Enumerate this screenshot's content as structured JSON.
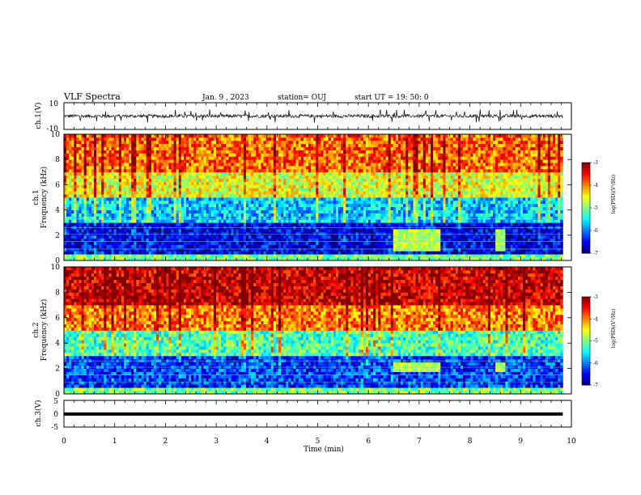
{
  "header": {
    "title": "VLF Spectra",
    "date": "Jan. 9 , 2023",
    "station": "station= OUJ",
    "start": "start UT = 19: 50: 0"
  },
  "chart_data": [
    {
      "type": "line",
      "title": "",
      "ylabel": "ch.1(V)",
      "ylim": [
        -10,
        10
      ],
      "yticks": [
        "10",
        "-10"
      ],
      "xlim": [
        0,
        9.83
      ],
      "series": [
        {
          "values_description_level": 0,
          "noise_amplitude": 1.5,
          "spikes": "frequent short spikes to about ±4 V"
        }
      ]
    },
    {
      "type": "heatmap",
      "ylabel": "ch.1",
      "ylabel2": "Frequency (kHz)",
      "ylim": [
        0,
        10
      ],
      "yticks": [
        "0",
        "2",
        "4",
        "6",
        "8",
        "10"
      ],
      "xlim": [
        0,
        9.83
      ],
      "colorbar": {
        "label": "log(PSD)(V²/Hz)",
        "range": [
          -7,
          -3
        ],
        "ticks": [
          "-3",
          "-4",
          "-5",
          "-6",
          "-7"
        ]
      },
      "bands": [
        {
          "from_khz": 0,
          "to_khz": 3,
          "level": -6.6
        },
        {
          "from_khz": 3,
          "to_khz": 5,
          "level": -5.7
        },
        {
          "from_khz": 5,
          "to_khz": 7,
          "level": -4.6
        },
        {
          "from_khz": 7,
          "to_khz": 10,
          "level": -3.9
        }
      ],
      "events": [
        {
          "t_min": 6.5,
          "t_max": 7.4,
          "f_low": 0.8,
          "f_high": 2.4,
          "level": -4.8
        },
        {
          "t_min": 8.5,
          "t_max": 8.7,
          "f_low": 0.8,
          "f_high": 2.4,
          "level": -4.8
        }
      ]
    },
    {
      "type": "heatmap",
      "ylabel": "ch.2",
      "ylabel2": "Frequency (kHz)",
      "ylim": [
        0,
        10
      ],
      "yticks": [
        "0",
        "2",
        "4",
        "6",
        "8",
        "10"
      ],
      "xlim": [
        0,
        9.83
      ],
      "colorbar": {
        "label": "log(PSD)(V²/Hz)",
        "range": [
          -7,
          -3
        ],
        "ticks": [
          "-3",
          "-4",
          "-5",
          "-6",
          "-7"
        ]
      },
      "bands": [
        {
          "from_khz": 0,
          "to_khz": 3,
          "level": -6.3
        },
        {
          "from_khz": 3,
          "to_khz": 5,
          "level": -5.2
        },
        {
          "from_khz": 5,
          "to_khz": 7,
          "level": -4.0
        },
        {
          "from_khz": 7,
          "to_khz": 10,
          "level": -3.3
        }
      ],
      "events": [
        {
          "t_min": 6.5,
          "t_max": 7.4,
          "f_low": 1.8,
          "f_high": 2.6,
          "level": -4.8
        },
        {
          "t_min": 8.5,
          "t_max": 8.7,
          "f_low": 1.8,
          "f_high": 2.6,
          "level": -4.8
        }
      ]
    },
    {
      "type": "line",
      "ylabel": "ch.3(V)",
      "ylim": [
        -5,
        5
      ],
      "yticks": [
        "5",
        "0",
        "-5"
      ],
      "xlim": [
        0,
        9.83
      ],
      "series": [
        {
          "values_description_level": -0.1,
          "noise_amplitude": 0
        }
      ]
    }
  ],
  "xaxis": {
    "label": "Time (min)",
    "ticks": [
      "0",
      "1",
      "2",
      "3",
      "4",
      "5",
      "6",
      "7",
      "8",
      "9",
      "10"
    ],
    "range": [
      0,
      10
    ]
  }
}
